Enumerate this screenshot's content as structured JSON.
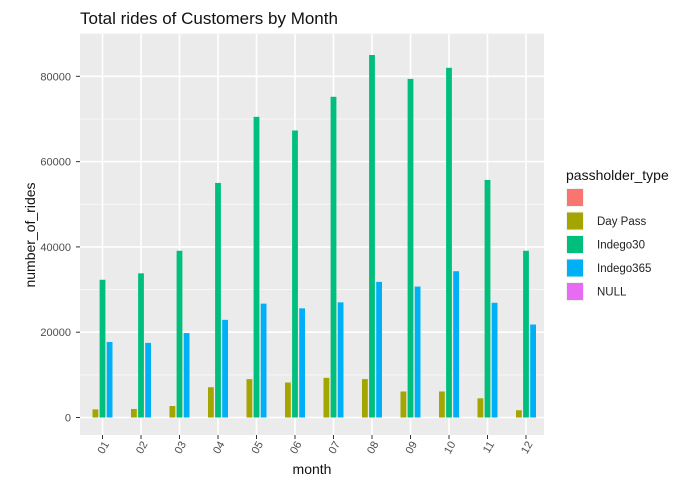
{
  "chart_data": {
    "type": "bar",
    "title": "Total rides of Customers by Month",
    "xlabel": "month",
    "ylabel": "number_of_rides",
    "categories": [
      "01",
      "02",
      "03",
      "04",
      "05",
      "06",
      "07",
      "08",
      "09",
      "10",
      "11",
      "12"
    ],
    "ylim": [
      0,
      88000
    ],
    "yticks": [
      0,
      20000,
      40000,
      60000,
      80000
    ],
    "grid": true,
    "legend_position": "right",
    "legend_title": "passholder_type",
    "series": [
      {
        "name": "",
        "color": "#F8766D",
        "values": [
          0,
          0,
          0,
          0,
          0,
          0,
          0,
          0,
          0,
          0,
          0,
          0
        ]
      },
      {
        "name": "Day Pass",
        "color": "#A3A500",
        "values": [
          1900,
          2000,
          2700,
          7100,
          9000,
          8200,
          9300,
          9000,
          6100,
          6100,
          4500,
          1700
        ]
      },
      {
        "name": "Indego30",
        "color": "#00BF7D",
        "values": [
          32300,
          33800,
          39100,
          55000,
          70500,
          67300,
          75200,
          85000,
          79400,
          82000,
          55700,
          39100
        ]
      },
      {
        "name": "Indego365",
        "color": "#00B0F6",
        "values": [
          17700,
          17500,
          19800,
          22900,
          26700,
          25600,
          27000,
          31800,
          30700,
          34300,
          26900,
          21800
        ]
      },
      {
        "name": "NULL",
        "color": "#E76BF3",
        "values": [
          0,
          0,
          0,
          0,
          0,
          0,
          0,
          0,
          0,
          0,
          0,
          0
        ]
      }
    ]
  }
}
